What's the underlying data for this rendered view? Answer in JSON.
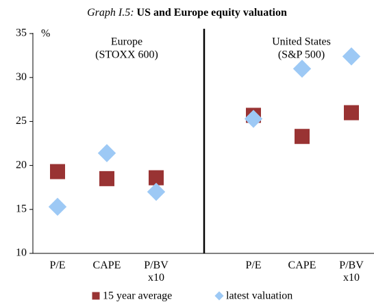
{
  "chart_data": {
    "type": "scatter",
    "title_prefix": "Graph I.5:",
    "title": "US and Europe equity valuation",
    "y_unit": "%",
    "annotations": [
      "Europe",
      "(STOXX 600)",
      "United States",
      "(S&P 500)"
    ],
    "categories": [
      "P/E",
      "CAPE",
      "P/BV x10",
      "P/E",
      "CAPE",
      "P/BV x10"
    ],
    "series": [
      {
        "name": "15 year average",
        "color": "#993333",
        "marker": "square",
        "values": [
          19.3,
          18.5,
          18.6,
          25.7,
          23.3,
          26.0
        ]
      },
      {
        "name": "latest valuation",
        "color": "#9dc9f5",
        "marker": "diamond",
        "values": [
          15.3,
          21.4,
          17.0,
          25.3,
          31.0,
          32.4
        ]
      }
    ],
    "ylim": [
      10,
      35
    ],
    "yticks": [
      10,
      15,
      20,
      25,
      30,
      35
    ]
  }
}
